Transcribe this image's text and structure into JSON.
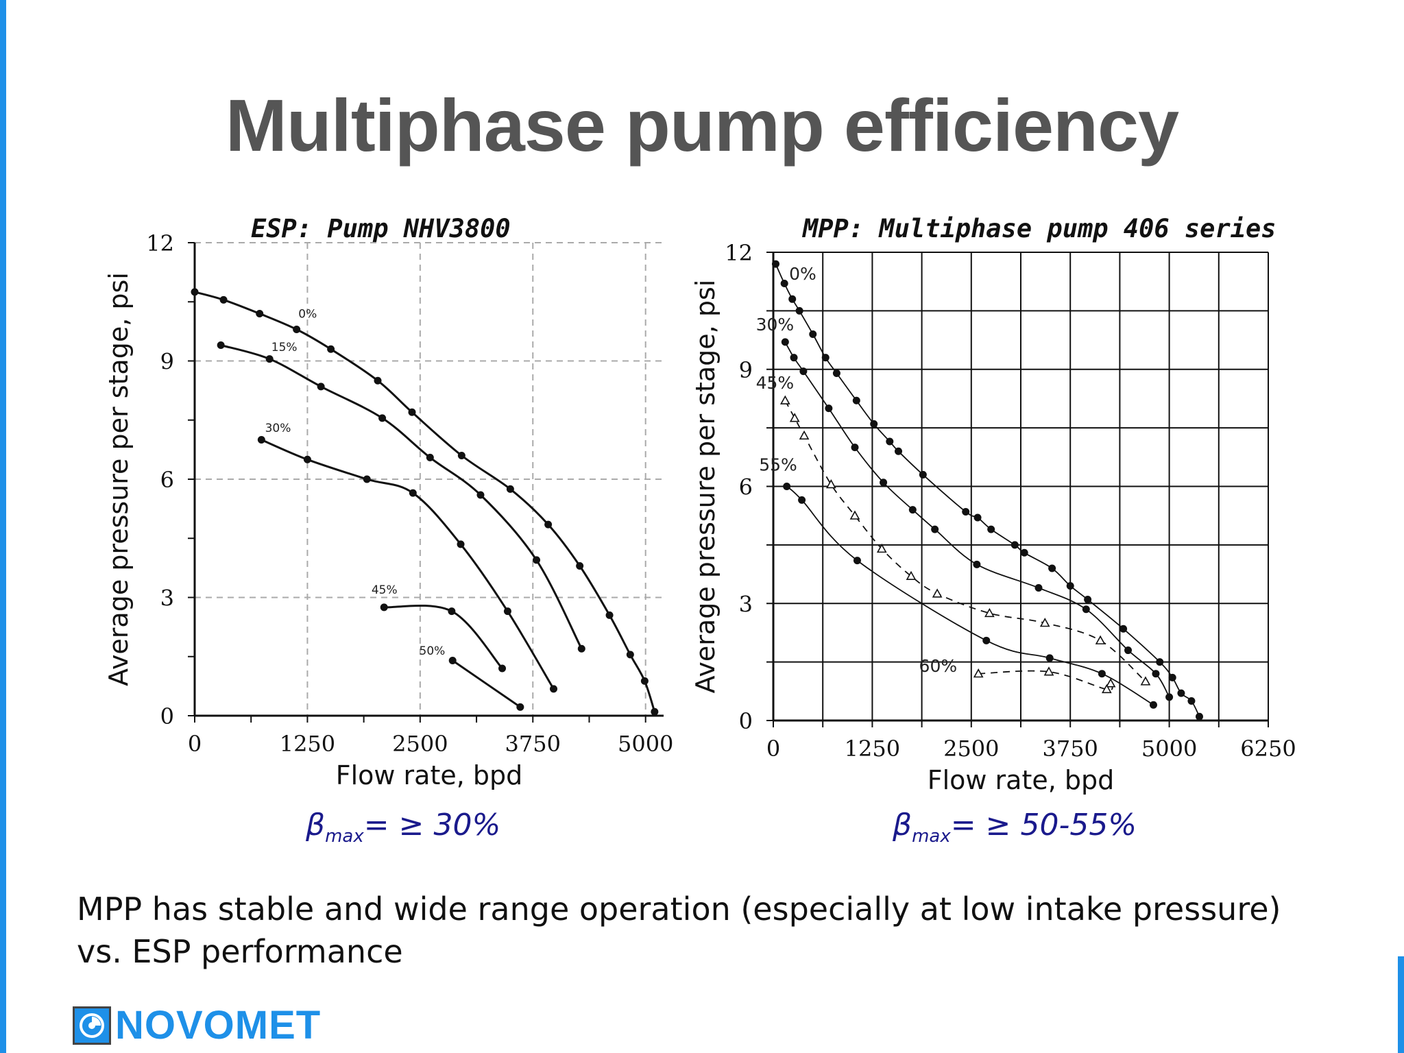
{
  "slide": {
    "title": "Multiphase pump efficiency",
    "body_text": "MPP has stable and wide range operation (especially at low intake pressure) vs. ESP performance",
    "logo_text": "NOVOMET",
    "accent_color": "#1e90e8"
  },
  "beta_left": {
    "symbol": "β",
    "sub": "max",
    "value": "= ≥ 30%"
  },
  "beta_right": {
    "symbol": "β",
    "sub": "max",
    "value": "= ≥ 50-55%"
  },
  "chart_data": [
    {
      "type": "line",
      "title": "ESP: Pump NHV3800",
      "xlabel": "Flow rate, bpd",
      "ylabel": "Average pressure per stage, psi",
      "xlim": [
        0,
        5200
      ],
      "ylim": [
        0,
        12
      ],
      "xticks": [
        0,
        1250,
        2500,
        3750,
        5000
      ],
      "xtick_labels": [
        "0",
        "1250",
        "2500",
        "3750",
        "5000"
      ],
      "yticks": [
        0,
        3,
        6,
        9,
        12
      ],
      "ytick_labels": [
        "0",
        "3",
        "6",
        "9",
        "12"
      ],
      "grid": "dashed",
      "series": [
        {
          "name": "0%",
          "label_at": [
            1150,
            10.1
          ],
          "marker": "dot",
          "dashed": false,
          "points": [
            [
              0,
              10.75
            ],
            [
              320,
              10.55
            ],
            [
              720,
              10.2
            ],
            [
              1130,
              9.8
            ],
            [
              1510,
              9.3
            ],
            [
              2030,
              8.5
            ],
            [
              2410,
              7.7
            ],
            [
              2960,
              6.6
            ],
            [
              3500,
              5.75
            ],
            [
              3920,
              4.85
            ],
            [
              4270,
              3.8
            ],
            [
              4600,
              2.55
            ],
            [
              4830,
              1.55
            ],
            [
              4990,
              0.88
            ],
            [
              5100,
              0.1
            ]
          ]
        },
        {
          "name": "15%",
          "label_at": [
            850,
            9.25
          ],
          "marker": "dot",
          "dashed": false,
          "points": [
            [
              290,
              9.4
            ],
            [
              830,
              9.05
            ],
            [
              1400,
              8.35
            ],
            [
              2080,
              7.55
            ],
            [
              2610,
              6.55
            ],
            [
              3170,
              5.6
            ],
            [
              3790,
              3.95
            ],
            [
              4290,
              1.7
            ]
          ]
        },
        {
          "name": "30%",
          "label_at": [
            780,
            7.2
          ],
          "marker": "dot",
          "dashed": false,
          "points": [
            [
              740,
              7.0
            ],
            [
              1250,
              6.5
            ],
            [
              1910,
              6.0
            ],
            [
              2420,
              5.65
            ],
            [
              2950,
              4.35
            ],
            [
              3470,
              2.65
            ],
            [
              3980,
              0.68
            ]
          ]
        },
        {
          "name": "45%",
          "label_at": [
            1960,
            3.1
          ],
          "marker": "dot",
          "dashed": false,
          "points": [
            [
              2100,
              2.75
            ],
            [
              2850,
              2.65
            ],
            [
              3410,
              1.2
            ]
          ]
        },
        {
          "name": "50%",
          "label_at": [
            2490,
            1.55
          ],
          "marker": "dot",
          "dashed": false,
          "points": [
            [
              2860,
              1.4
            ],
            [
              3610,
              0.22
            ]
          ]
        }
      ]
    },
    {
      "type": "line",
      "title": "MPP: Multiphase pump 406 series",
      "xlabel": "Flow rate, bpd",
      "ylabel": "Average pressure per stage, psi",
      "xlim": [
        0,
        6250
      ],
      "ylim": [
        0,
        12
      ],
      "xticks": [
        0,
        1250,
        2500,
        3750,
        5000,
        6250
      ],
      "xtick_labels": [
        "0",
        "1250",
        "2500",
        "3750",
        "5000",
        "6250"
      ],
      "yticks": [
        0,
        3,
        6,
        9,
        12
      ],
      "ytick_labels": [
        "0",
        "3",
        "6",
        "9",
        "12"
      ],
      "grid": "solid",
      "series": [
        {
          "name": "0%",
          "label_at": [
            200,
            11.3
          ],
          "marker": "dot",
          "dashed": false,
          "points": [
            [
              30,
              11.7
            ],
            [
              140,
              11.2
            ],
            [
              240,
              10.8
            ],
            [
              330,
              10.5
            ],
            [
              500,
              9.9
            ],
            [
              660,
              9.3
            ],
            [
              800,
              8.9
            ],
            [
              1050,
              8.2
            ],
            [
              1270,
              7.6
            ],
            [
              1470,
              7.15
            ],
            [
              1580,
              6.9
            ],
            [
              1890,
              6.3
            ],
            [
              2430,
              5.35
            ],
            [
              2580,
              5.2
            ],
            [
              2750,
              4.9
            ],
            [
              3050,
              4.5
            ],
            [
              3170,
              4.3
            ],
            [
              3520,
              3.9
            ],
            [
              3750,
              3.45
            ],
            [
              3970,
              3.1
            ],
            [
              4420,
              2.35
            ],
            [
              4880,
              1.5
            ],
            [
              5040,
              1.1
            ],
            [
              5150,
              0.7
            ],
            [
              5280,
              0.5
            ],
            [
              5380,
              0.1
            ]
          ]
        },
        {
          "name": "30%",
          "label_at": [
            -220,
            10.0
          ],
          "marker": "dot",
          "dashed": false,
          "points": [
            [
              150,
              9.7
            ],
            [
              260,
              9.3
            ],
            [
              380,
              8.95
            ],
            [
              700,
              8.0
            ],
            [
              1030,
              7.0
            ],
            [
              1390,
              6.1
            ],
            [
              1760,
              5.4
            ],
            [
              2040,
              4.9
            ],
            [
              2570,
              4.0
            ],
            [
              3350,
              3.4
            ],
            [
              3950,
              2.85
            ],
            [
              4480,
              1.8
            ],
            [
              4830,
              1.2
            ],
            [
              5000,
              0.6
            ]
          ]
        },
        {
          "name": "45%",
          "label_at": [
            -220,
            8.5
          ],
          "marker": "triangle",
          "dashed": true,
          "points": [
            [
              150,
              8.2
            ],
            [
              270,
              7.75
            ],
            [
              390,
              7.3
            ],
            [
              730,
              6.05
            ],
            [
              1030,
              5.25
            ],
            [
              1370,
              4.4
            ],
            [
              1740,
              3.7
            ],
            [
              2070,
              3.25
            ],
            [
              2730,
              2.75
            ],
            [
              3430,
              2.5
            ],
            [
              4130,
              2.05
            ],
            [
              4700,
              1.0
            ]
          ]
        },
        {
          "name": "55%",
          "label_at": [
            -180,
            6.4
          ],
          "marker": "dot",
          "dashed": false,
          "points": [
            [
              170,
              6.0
            ],
            [
              360,
              5.65
            ],
            [
              1060,
              4.1
            ],
            [
              2690,
              2.05
            ],
            [
              3490,
              1.6
            ],
            [
              4150,
              1.2
            ],
            [
              4800,
              0.4
            ]
          ]
        },
        {
          "name": "60%",
          "label_at": [
            1840,
            1.25
          ],
          "marker": "triangle",
          "dashed": true,
          "points": [
            [
              2590,
              1.2
            ],
            [
              3480,
              1.25
            ],
            [
              4260,
              0.95
            ],
            [
              4210,
              0.8
            ]
          ]
        }
      ]
    }
  ]
}
